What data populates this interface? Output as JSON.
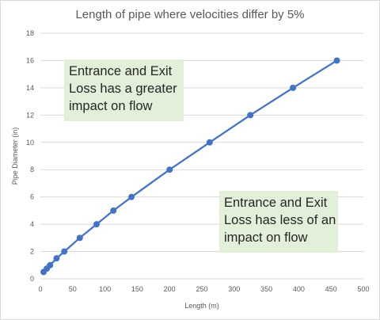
{
  "chart_data": {
    "type": "line",
    "title": "Length of pipe where velocities differ by 5%",
    "xlabel": "Length (m)",
    "ylabel": "Pipe Diameter (in)",
    "xlim": [
      0,
      500
    ],
    "ylim": [
      0,
      18
    ],
    "x_ticks": [
      0,
      50,
      100,
      150,
      200,
      250,
      300,
      350,
      400,
      450,
      500
    ],
    "y_ticks": [
      0,
      2,
      4,
      6,
      8,
      10,
      12,
      14,
      16,
      18
    ],
    "grid": "horizontal",
    "series": [
      {
        "color": "#4472c4",
        "points": [
          {
            "x": 5,
            "y": 0.5
          },
          {
            "x": 10,
            "y": 0.75
          },
          {
            "x": 15,
            "y": 1.0
          },
          {
            "x": 25,
            "y": 1.5
          },
          {
            "x": 37,
            "y": 2
          },
          {
            "x": 61,
            "y": 3
          },
          {
            "x": 87,
            "y": 4
          },
          {
            "x": 113,
            "y": 5
          },
          {
            "x": 141,
            "y": 6
          },
          {
            "x": 200,
            "y": 8
          },
          {
            "x": 262,
            "y": 10
          },
          {
            "x": 325,
            "y": 12
          },
          {
            "x": 391,
            "y": 14
          },
          {
            "x": 459,
            "y": 16
          }
        ]
      }
    ],
    "annotations": [
      {
        "lines": [
          "Entrance and Exit",
          "Loss has a greater",
          "impact on flow"
        ]
      },
      {
        "lines": [
          "Entrance and Exit",
          "Loss has less of an",
          "impact on flow"
        ]
      }
    ]
  }
}
